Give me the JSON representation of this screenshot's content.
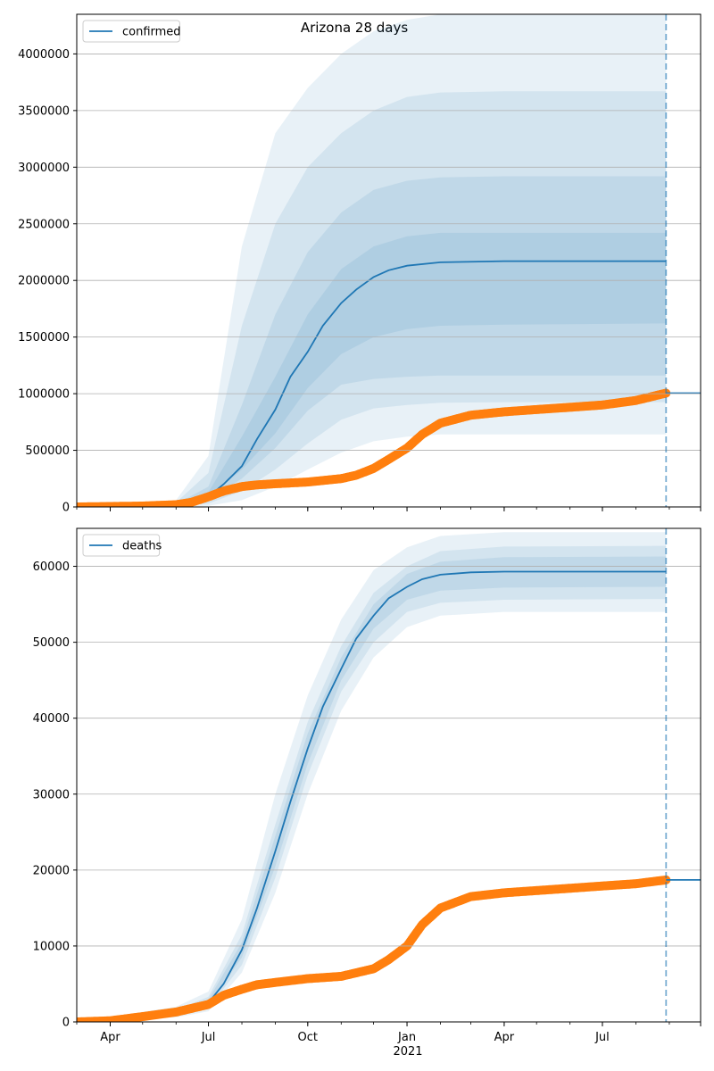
{
  "figure": {
    "title": "Arizona 28 days"
  },
  "x_axis": {
    "tick_labels": [
      "Apr",
      "Jul",
      "Oct",
      "Jan",
      "Apr",
      "Jul"
    ],
    "tick_dates": [
      "2020-04-01",
      "2020-07-01",
      "2020-10-01",
      "2021-01-01",
      "2021-04-01",
      "2021-07-01"
    ],
    "year_label": "2021",
    "range": [
      "2020-03-01",
      "2021-09-30"
    ],
    "forecast_date": "2021-08-29"
  },
  "colors": {
    "model": "#1f77b4",
    "observed": "#ff7f0e",
    "band": "#1f77b4",
    "grid": "#b0b0b0"
  },
  "chart_data": [
    {
      "type": "line",
      "legend": {
        "entries": [
          "confirmed"
        ],
        "placement": "top-left"
      },
      "grid": "y",
      "ylim": [
        0,
        4350000
      ],
      "yticks": [
        0,
        500000,
        1000000,
        1500000,
        2000000,
        2500000,
        3000000,
        3500000,
        4000000
      ],
      "series": [
        {
          "name": "confirmed",
          "kind": "model-median",
          "x": [
            "2020-03-01",
            "2020-06-01",
            "2020-06-15",
            "2020-07-01",
            "2020-07-15",
            "2020-08-01",
            "2020-08-15",
            "2020-09-01",
            "2020-09-15",
            "2020-10-01",
            "2020-10-15",
            "2020-11-01",
            "2020-11-15",
            "2020-12-01",
            "2020-12-15",
            "2021-01-01",
            "2021-02-01",
            "2021-04-01",
            "2021-08-29"
          ],
          "values": [
            0,
            10000,
            40000,
            90000,
            200000,
            360000,
            600000,
            860000,
            1150000,
            1370000,
            1600000,
            1800000,
            1920000,
            2030000,
            2090000,
            2130000,
            2160000,
            2170000,
            2170000
          ]
        },
        {
          "name": "observed",
          "kind": "observed-points",
          "x": [
            "2020-03-01",
            "2020-05-01",
            "2020-06-01",
            "2020-06-15",
            "2020-07-01",
            "2020-07-15",
            "2020-08-01",
            "2020-08-15",
            "2020-09-01",
            "2020-10-01",
            "2020-11-01",
            "2020-11-15",
            "2020-12-01",
            "2020-12-15",
            "2021-01-01",
            "2021-01-15",
            "2021-02-01",
            "2021-03-01",
            "2021-04-01",
            "2021-05-01",
            "2021-06-01",
            "2021-07-01",
            "2021-08-01",
            "2021-08-29"
          ],
          "values": [
            0,
            8000,
            20000,
            40000,
            90000,
            140000,
            180000,
            195000,
            205000,
            220000,
            250000,
            280000,
            340000,
            420000,
            520000,
            640000,
            740000,
            810000,
            840000,
            860000,
            880000,
            900000,
            940000,
            1005000
          ]
        },
        {
          "name": "forecast",
          "kind": "forecast-line",
          "x": [
            "2021-08-29",
            "2021-09-30"
          ],
          "values": [
            1005000,
            1005000
          ]
        }
      ],
      "bands": [
        {
          "x": [
            "2020-03-01",
            "2020-06-01",
            "2020-07-01",
            "2020-08-01",
            "2020-09-01",
            "2020-10-01",
            "2020-11-01",
            "2020-12-01",
            "2021-01-01",
            "2021-02-01",
            "2021-04-01",
            "2021-08-29"
          ],
          "lower": [
            0,
            0,
            10000,
            60000,
            180000,
            330000,
            480000,
            580000,
            620000,
            640000,
            640000,
            640000
          ],
          "upper": [
            0,
            60000,
            450000,
            2300000,
            3300000,
            3700000,
            4000000,
            4200000,
            4300000,
            4350000,
            4350000,
            4350000
          ]
        },
        {
          "x": [
            "2020-03-01",
            "2020-06-01",
            "2020-07-01",
            "2020-08-01",
            "2020-09-01",
            "2020-10-01",
            "2020-11-01",
            "2020-12-01",
            "2021-01-01",
            "2021-02-01",
            "2021-04-01",
            "2021-08-29"
          ],
          "lower": [
            0,
            3000,
            30000,
            140000,
            330000,
            560000,
            770000,
            870000,
            900000,
            920000,
            925000,
            925000
          ],
          "upper": [
            0,
            40000,
            300000,
            1600000,
            2500000,
            3000000,
            3300000,
            3500000,
            3620000,
            3660000,
            3670000,
            3670000
          ]
        },
        {
          "x": [
            "2020-03-01",
            "2020-06-01",
            "2020-07-01",
            "2020-08-01",
            "2020-09-01",
            "2020-10-01",
            "2020-11-01",
            "2020-12-01",
            "2021-01-01",
            "2021-02-01",
            "2021-04-01",
            "2021-08-29"
          ],
          "lower": [
            0,
            6000,
            60000,
            250000,
            520000,
            850000,
            1080000,
            1130000,
            1150000,
            1160000,
            1160000,
            1160000
          ],
          "upper": [
            0,
            25000,
            180000,
            900000,
            1700000,
            2250000,
            2600000,
            2800000,
            2880000,
            2910000,
            2920000,
            2920000
          ]
        },
        {
          "x": [
            "2020-03-01",
            "2020-06-01",
            "2020-07-01",
            "2020-08-01",
            "2020-09-01",
            "2020-10-01",
            "2020-11-01",
            "2020-12-01",
            "2021-01-01",
            "2021-02-01",
            "2021-04-01",
            "2021-08-29"
          ],
          "lower": [
            0,
            8000,
            80000,
            330000,
            650000,
            1050000,
            1350000,
            1500000,
            1570000,
            1600000,
            1610000,
            1620000
          ],
          "upper": [
            0,
            18000,
            130000,
            620000,
            1150000,
            1700000,
            2100000,
            2300000,
            2390000,
            2420000,
            2420000,
            2420000
          ]
        }
      ]
    },
    {
      "type": "line",
      "legend": {
        "entries": [
          "deaths"
        ],
        "placement": "top-left"
      },
      "grid": "y",
      "ylim": [
        0,
        65000
      ],
      "yticks": [
        0,
        10000,
        20000,
        30000,
        40000,
        50000,
        60000
      ],
      "series": [
        {
          "name": "deaths",
          "kind": "model-median",
          "x": [
            "2020-03-01",
            "2020-06-01",
            "2020-07-01",
            "2020-07-15",
            "2020-08-01",
            "2020-08-15",
            "2020-09-01",
            "2020-09-15",
            "2020-10-01",
            "2020-10-15",
            "2020-11-01",
            "2020-11-15",
            "2020-12-01",
            "2020-12-15",
            "2021-01-01",
            "2021-01-15",
            "2021-02-01",
            "2021-03-01",
            "2021-04-01",
            "2021-08-29"
          ],
          "values": [
            0,
            1200,
            2500,
            5000,
            9500,
            15000,
            22500,
            29000,
            36000,
            41500,
            46500,
            50500,
            53500,
            55800,
            57300,
            58300,
            58900,
            59200,
            59300,
            59300
          ]
        },
        {
          "name": "observed",
          "kind": "observed-points",
          "x": [
            "2020-03-01",
            "2020-04-01",
            "2020-05-01",
            "2020-06-01",
            "2020-07-01",
            "2020-07-15",
            "2020-08-01",
            "2020-08-15",
            "2020-09-01",
            "2020-10-01",
            "2020-11-01",
            "2020-12-01",
            "2020-12-15",
            "2021-01-01",
            "2021-01-15",
            "2021-02-01",
            "2021-03-01",
            "2021-04-01",
            "2021-05-01",
            "2021-06-01",
            "2021-07-01",
            "2021-08-01",
            "2021-08-29"
          ],
          "values": [
            0,
            150,
            700,
            1300,
            2300,
            3500,
            4300,
            4900,
            5200,
            5700,
            6000,
            7000,
            8200,
            10000,
            12800,
            15000,
            16500,
            17000,
            17300,
            17600,
            17900,
            18200,
            18700
          ]
        },
        {
          "name": "forecast",
          "kind": "forecast-line",
          "x": [
            "2021-08-29",
            "2021-09-30"
          ],
          "values": [
            18700,
            18700
          ]
        }
      ],
      "bands": [
        {
          "x": [
            "2020-03-01",
            "2020-06-01",
            "2020-07-01",
            "2020-08-01",
            "2020-09-01",
            "2020-10-01",
            "2020-11-01",
            "2020-12-01",
            "2021-01-01",
            "2021-02-01",
            "2021-04-01",
            "2021-08-29"
          ],
          "lower": [
            0,
            600,
            1400,
            6500,
            17000,
            30000,
            41000,
            48000,
            52000,
            53500,
            54000,
            54000
          ],
          "upper": [
            0,
            2000,
            4000,
            13500,
            30000,
            43000,
            53000,
            59500,
            62500,
            64000,
            64500,
            64500
          ]
        },
        {
          "x": [
            "2020-03-01",
            "2020-06-01",
            "2020-07-01",
            "2020-08-01",
            "2020-09-01",
            "2020-10-01",
            "2020-11-01",
            "2020-12-01",
            "2021-01-01",
            "2021-02-01",
            "2021-04-01",
            "2021-08-29"
          ],
          "lower": [
            0,
            800,
            1800,
            7500,
            19000,
            32500,
            43500,
            50000,
            54000,
            55200,
            55600,
            55700
          ],
          "upper": [
            0,
            1600,
            3300,
            11500,
            26000,
            39500,
            49500,
            56500,
            60000,
            62000,
            62600,
            62700
          ]
        },
        {
          "x": [
            "2020-03-01",
            "2020-06-01",
            "2020-07-01",
            "2020-08-01",
            "2020-09-01",
            "2020-10-01",
            "2020-11-01",
            "2020-12-01",
            "2021-01-01",
            "2021-02-01",
            "2021-04-01",
            "2021-08-29"
          ],
          "lower": [
            0,
            1000,
            2100,
            8500,
            20500,
            34000,
            45000,
            51800,
            55600,
            56800,
            57200,
            57300
          ],
          "upper": [
            0,
            1400,
            2900,
            10500,
            24500,
            38000,
            48000,
            55000,
            59000,
            60600,
            61200,
            61300
          ]
        }
      ]
    }
  ]
}
